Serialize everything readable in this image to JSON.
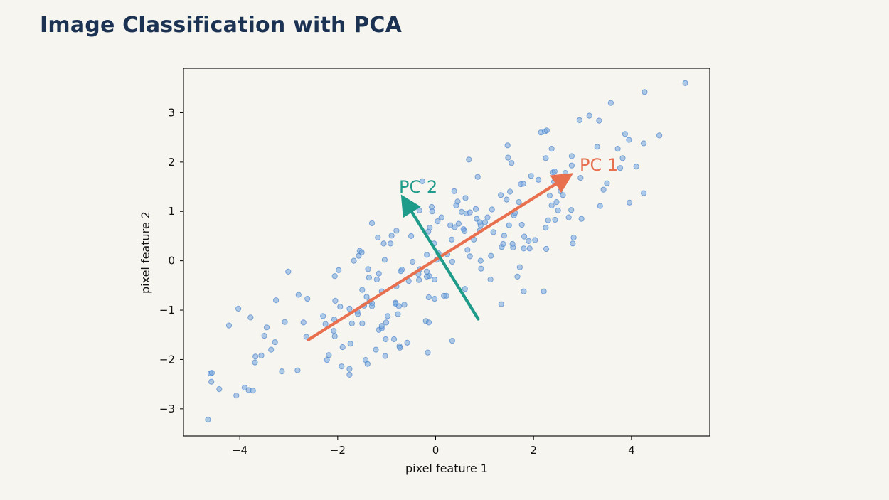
{
  "title": "Image Classification with PCA",
  "colors": {
    "title": "#1b3252",
    "background": "#f7f5f0",
    "points_fill": "#6fa3de",
    "points_stroke": "#4f88cc",
    "pc1": "#e8704f",
    "pc2": "#1f9b8a"
  },
  "chart_data": {
    "type": "scatter",
    "xlabel": "pixel feature 1",
    "ylabel": "pixel feature 2",
    "xlim": [
      -5.15,
      5.6
    ],
    "ylim": [
      -3.55,
      3.9
    ],
    "xticks": [
      -4,
      -2,
      0,
      2,
      4
    ],
    "yticks": [
      -3,
      -2,
      -1,
      0,
      1,
      2,
      3
    ],
    "grid": false,
    "points": [
      [
        -4.65,
        -3.22
      ],
      [
        -4.6,
        -2.28
      ],
      [
        -4.57,
        -2.27
      ],
      [
        -4.58,
        -2.45
      ],
      [
        -4.42,
        -2.6
      ],
      [
        -4.07,
        -2.73
      ],
      [
        -3.9,
        -2.57
      ],
      [
        -3.82,
        -2.62
      ],
      [
        -3.73,
        -2.63
      ],
      [
        -3.69,
        -2.06
      ],
      [
        -3.68,
        -1.94
      ],
      [
        -3.56,
        -1.92
      ],
      [
        -3.5,
        -1.52
      ],
      [
        -3.45,
        -1.35
      ],
      [
        -3.36,
        -1.8
      ],
      [
        -3.28,
        -1.65
      ],
      [
        -3.26,
        -0.8
      ],
      [
        -3.14,
        -2.24
      ],
      [
        -3.08,
        -1.24
      ],
      [
        -3.01,
        -0.22
      ],
      [
        -2.82,
        -2.22
      ],
      [
        -2.8,
        -0.69
      ],
      [
        -2.7,
        -1.25
      ],
      [
        -2.64,
        -1.54
      ],
      [
        -2.62,
        -0.77
      ],
      [
        -4.22,
        -1.31
      ],
      [
        -4.03,
        -0.97
      ],
      [
        -3.78,
        -1.15
      ],
      [
        -2.3,
        -1.12
      ],
      [
        -2.25,
        -1.28
      ],
      [
        -2.22,
        -2.01
      ],
      [
        -2.18,
        -1.91
      ],
      [
        -2.08,
        -1.42
      ],
      [
        -2.06,
        -1.53
      ],
      [
        -2.07,
        -1.19
      ],
      [
        -2.05,
        -0.81
      ],
      [
        -2.06,
        -0.31
      ],
      [
        -1.98,
        -0.19
      ],
      [
        -1.95,
        -0.93
      ],
      [
        -1.92,
        -2.14
      ],
      [
        -1.9,
        -1.75
      ],
      [
        -1.76,
        -2.31
      ],
      [
        -1.76,
        -2.19
      ],
      [
        -1.76,
        -0.97
      ],
      [
        -1.74,
        -1.68
      ],
      [
        -1.71,
        -1.27
      ],
      [
        -1.67,
        0.0
      ],
      [
        -1.6,
        -1.03
      ],
      [
        -1.59,
        -1.08
      ],
      [
        -1.57,
        0.1
      ],
      [
        -1.55,
        0.2
      ],
      [
        -1.51,
        0.17
      ],
      [
        -1.5,
        -0.59
      ],
      [
        -1.5,
        -1.27
      ],
      [
        -1.46,
        -0.91
      ],
      [
        -1.43,
        -2.01
      ],
      [
        -1.41,
        -0.73
      ],
      [
        -1.39,
        -2.09
      ],
      [
        -1.38,
        -0.17
      ],
      [
        -1.36,
        -0.34
      ],
      [
        -1.35,
        -0.82
      ],
      [
        -1.3,
        -0.86
      ],
      [
        -1.3,
        -0.92
      ],
      [
        -1.3,
        0.76
      ],
      [
        -1.22,
        -1.8
      ],
      [
        -1.2,
        -0.38
      ],
      [
        -1.18,
        0.47
      ],
      [
        -1.16,
        -1.4
      ],
      [
        -1.16,
        -0.26
      ],
      [
        -1.1,
        -1.37
      ],
      [
        -1.1,
        -0.62
      ],
      [
        -1.1,
        -1.32
      ],
      [
        -1.06,
        0.35
      ],
      [
        -1.04,
        0.02
      ],
      [
        -1.03,
        -1.93
      ],
      [
        -1.02,
        -1.59
      ],
      [
        -1.01,
        -1.25
      ],
      [
        -0.98,
        -1.12
      ],
      [
        -0.92,
        0.35
      ],
      [
        -0.9,
        0.51
      ],
      [
        -0.85,
        -1.59
      ],
      [
        -0.82,
        -0.85
      ],
      [
        -0.82,
        -0.87
      ],
      [
        -0.8,
        0.61
      ],
      [
        -0.8,
        -0.52
      ],
      [
        -0.77,
        -1.08
      ],
      [
        -0.75,
        -0.92
      ],
      [
        -0.74,
        -1.73
      ],
      [
        -0.73,
        -1.76
      ],
      [
        -0.71,
        -0.21
      ],
      [
        -0.69,
        -0.18
      ],
      [
        -0.64,
        -0.89
      ],
      [
        -0.58,
        -1.66
      ],
      [
        -0.55,
        -0.41
      ],
      [
        -0.5,
        0.5
      ],
      [
        -0.47,
        -0.02
      ],
      [
        -0.35,
        -0.27
      ],
      [
        -0.34,
        -0.39
      ],
      [
        -0.33,
        1.02
      ],
      [
        -0.32,
        -0.17
      ],
      [
        -0.27,
        1.61
      ],
      [
        -0.2,
        -1.22
      ],
      [
        -0.18,
        0.12
      ],
      [
        -0.18,
        -0.32
      ],
      [
        -0.18,
        -0.22
      ],
      [
        -0.16,
        -1.86
      ],
      [
        -0.15,
        0.59
      ],
      [
        -0.14,
        -0.74
      ],
      [
        -0.14,
        -1.25
      ],
      [
        -0.13,
        -0.31
      ],
      [
        -0.12,
        0.67
      ],
      [
        -0.08,
        1.09
      ],
      [
        -0.07,
        1.0
      ],
      [
        -0.03,
        0.35
      ],
      [
        -0.02,
        -0.77
      ],
      [
        -0.02,
        -0.38
      ],
      [
        0.02,
        0.02
      ],
      [
        0.04,
        0.8
      ],
      [
        0.06,
        0.15
      ],
      [
        0.12,
        0.88
      ],
      [
        0.17,
        -0.71
      ],
      [
        0.22,
        -0.71
      ],
      [
        0.24,
        0.13
      ],
      [
        0.3,
        0.72
      ],
      [
        0.33,
        0.43
      ],
      [
        0.34,
        -0.02
      ],
      [
        0.34,
        -1.62
      ],
      [
        0.38,
        1.41
      ],
      [
        0.39,
        0.68
      ],
      [
        0.42,
        1.12
      ],
      [
        0.45,
        1.2
      ],
      [
        0.47,
        0.75
      ],
      [
        0.53,
        0.99
      ],
      [
        0.57,
        0.64
      ],
      [
        0.59,
        0.6
      ],
      [
        0.6,
        -0.57
      ],
      [
        0.61,
        1.27
      ],
      [
        0.63,
        0.96
      ],
      [
        0.65,
        0.22
      ],
      [
        0.68,
        2.05
      ],
      [
        0.7,
        0.98
      ],
      [
        0.7,
        0.09
      ],
      [
        0.78,
        0.43
      ],
      [
        0.82,
        1.05
      ],
      [
        0.84,
        0.85
      ],
      [
        0.86,
        1.7
      ],
      [
        0.9,
        0.78
      ],
      [
        0.9,
        0.61
      ],
      [
        0.92,
        0.0
      ],
      [
        0.92,
        0.72
      ],
      [
        0.93,
        -0.16
      ],
      [
        1.01,
        0.78
      ],
      [
        1.06,
        0.88
      ],
      [
        1.12,
        -0.38
      ],
      [
        1.13,
        0.1
      ],
      [
        1.15,
        1.04
      ],
      [
        1.18,
        0.58
      ],
      [
        1.33,
        1.33
      ],
      [
        1.34,
        -0.88
      ],
      [
        1.35,
        0.28
      ],
      [
        1.38,
        0.34
      ],
      [
        1.4,
        0.51
      ],
      [
        1.45,
        1.24
      ],
      [
        1.47,
        2.34
      ],
      [
        1.48,
        2.09
      ],
      [
        1.5,
        0.72
      ],
      [
        1.52,
        1.4
      ],
      [
        1.55,
        1.98
      ],
      [
        1.57,
        0.34
      ],
      [
        1.58,
        0.27
      ],
      [
        1.6,
        0.92
      ],
      [
        1.62,
        0.97
      ],
      [
        1.67,
        -0.32
      ],
      [
        1.7,
        1.19
      ],
      [
        1.72,
        -0.13
      ],
      [
        1.74,
        1.55
      ],
      [
        1.76,
        0.73
      ],
      [
        1.79,
        1.56
      ],
      [
        1.8,
        0.25
      ],
      [
        1.8,
        -0.62
      ],
      [
        1.81,
        0.49
      ],
      [
        1.9,
        0.4
      ],
      [
        1.92,
        0.25
      ],
      [
        1.95,
        1.72
      ],
      [
        2.03,
        0.42
      ],
      [
        2.1,
        1.64
      ],
      [
        2.15,
        2.6
      ],
      [
        2.21,
        -0.62
      ],
      [
        2.23,
        2.62
      ],
      [
        2.25,
        0.67
      ],
      [
        2.25,
        2.08
      ],
      [
        2.26,
        0.24
      ],
      [
        2.27,
        2.64
      ],
      [
        2.3,
        0.82
      ],
      [
        2.33,
        1.32
      ],
      [
        2.37,
        1.12
      ],
      [
        2.37,
        2.27
      ],
      [
        2.4,
        1.79
      ],
      [
        2.42,
        1.6
      ],
      [
        2.43,
        1.81
      ],
      [
        2.44,
        0.83
      ],
      [
        2.47,
        1.19
      ],
      [
        2.5,
        1.02
      ],
      [
        2.55,
        1.41
      ],
      [
        2.6,
        1.33
      ],
      [
        2.65,
        1.78
      ],
      [
        2.72,
        0.88
      ],
      [
        2.77,
        1.03
      ],
      [
        2.78,
        2.12
      ],
      [
        2.78,
        1.93
      ],
      [
        2.8,
        0.35
      ],
      [
        2.82,
        0.47
      ],
      [
        2.94,
        2.85
      ],
      [
        2.96,
        1.68
      ],
      [
        2.98,
        0.85
      ],
      [
        3.14,
        2.94
      ],
      [
        3.3,
        2.31
      ],
      [
        3.34,
        2.84
      ],
      [
        3.36,
        1.11
      ],
      [
        3.43,
        1.44
      ],
      [
        3.5,
        1.57
      ],
      [
        3.58,
        3.2
      ],
      [
        3.72,
        2.27
      ],
      [
        3.77,
        1.88
      ],
      [
        3.82,
        2.08
      ],
      [
        3.87,
        2.57
      ],
      [
        3.95,
        2.45
      ],
      [
        3.96,
        1.18
      ],
      [
        4.1,
        1.91
      ],
      [
        4.25,
        2.38
      ],
      [
        4.27,
        3.42
      ],
      [
        4.25,
        1.37
      ],
      [
        4.57,
        2.54
      ],
      [
        5.1,
        3.6
      ]
    ],
    "vectors": [
      {
        "label": "PC 1",
        "from": [
          -2.6,
          -1.6
        ],
        "to": [
          2.72,
          1.72
        ]
      },
      {
        "label": "PC 2",
        "from": [
          0.87,
          -1.18
        ],
        "to": [
          -0.65,
          1.25
        ]
      }
    ]
  }
}
